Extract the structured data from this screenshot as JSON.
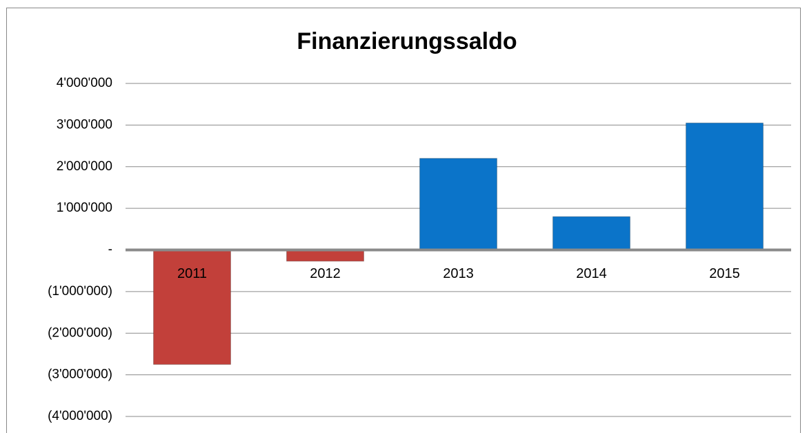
{
  "chart_data": {
    "type": "bar",
    "title": "Finanzierungssaldo",
    "categories": [
      "2011",
      "2012",
      "2013",
      "2014",
      "2015"
    ],
    "values": [
      -2750000,
      -270000,
      2200000,
      800000,
      3050000
    ],
    "color": "#0b74c9",
    "negative_color": "#c2403a",
    "ylim": [
      -4000000,
      4000000
    ],
    "yticks": [
      {
        "value": -4000000,
        "label": "(4'000'000)"
      },
      {
        "value": -3000000,
        "label": "(3'000'000)"
      },
      {
        "value": -2000000,
        "label": "(2'000'000)"
      },
      {
        "value": -1000000,
        "label": "(1'000'000)"
      },
      {
        "value": 0,
        "label": "-"
      },
      {
        "value": 1000000,
        "label": "1'000'000"
      },
      {
        "value": 2000000,
        "label": "2'000'000"
      },
      {
        "value": 3000000,
        "label": "3'000'000"
      },
      {
        "value": 4000000,
        "label": "4'000'000"
      }
    ],
    "grid": true
  }
}
